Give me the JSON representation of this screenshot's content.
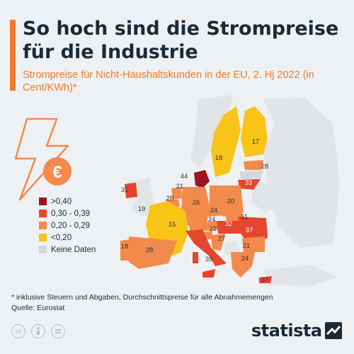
{
  "title": "So hoch sind die Strompreise für die Industrie",
  "subtitle": "Strompreise für Nicht-Haushaltskunden in der EU, 2. Hj 2022 (in Cent/KWh)*",
  "colors": {
    "accent": "#f07a2a",
    "dark_red": "#9c1521",
    "red": "#e6452e",
    "orange": "#f28a4b",
    "yellow": "#f7c417",
    "no_data": "#d2d9de",
    "non_eu": "#e1e5e8"
  },
  "legend": [
    {
      "label": ">0,40",
      "color": "#9c1521"
    },
    {
      "label": "0,30 - 0,39",
      "color": "#e6452e"
    },
    {
      "label": "0,20 - 0,29",
      "color": "#f28a4b"
    },
    {
      "label": "<0,20",
      "color": "#f7c417"
    },
    {
      "label": "Keine Daten",
      "color": "#d2d9de"
    }
  ],
  "map": {
    "icon": "lightning-euro-icon",
    "values": {
      "finland": "17",
      "sweden": "18",
      "denmark": "44",
      "estonia": "28",
      "lithuania": "33",
      "ireland": "31",
      "netherlands": "21",
      "belgium": "28",
      "luxembourg": "19",
      "germany": "26",
      "poland": "20",
      "czechia": "24",
      "slovakia": "31",
      "austria": "24",
      "hungary": "32",
      "romania": "37",
      "slovenia": "22",
      "croatia": "27",
      "bulgaria": "21",
      "france": "15",
      "portugal": "18",
      "spain": "28",
      "italy": "39",
      "greece": "24",
      "cyprus": "37"
    }
  },
  "footnote": "* inklusive Steuern und Abgaben, Durchschnittspreise für alle Abnahmemengen",
  "source": "Quelle: Eurostat",
  "license_icons": [
    "cc-icon",
    "person-icon",
    "equal-icon"
  ],
  "brand": "statista"
}
